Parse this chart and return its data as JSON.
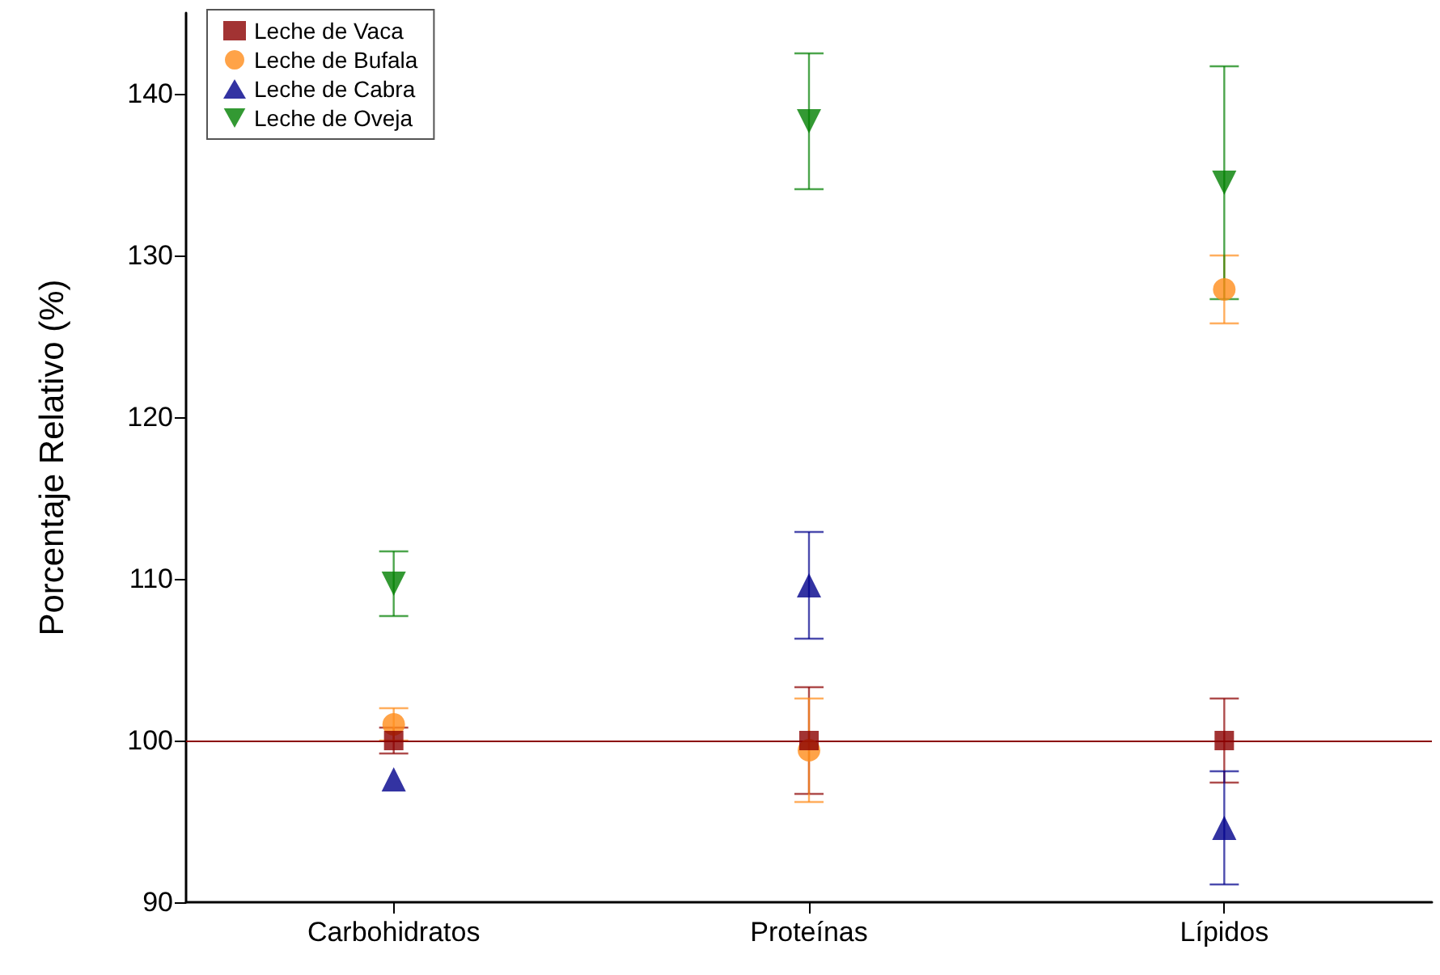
{
  "chart_data": {
    "type": "scatter",
    "ylabel": "Porcentaje Relativo (%)",
    "categories": [
      "Carbohidratos",
      "Proteínas",
      "Lípidos"
    ],
    "series": [
      {
        "name": "Leche de Vaca",
        "color": "#8b0000",
        "marker": "square",
        "values": [
          100,
          100,
          100
        ],
        "errors": [
          0.8,
          3.3,
          2.6
        ]
      },
      {
        "name": "Leche de Bufala",
        "color": "#ff8c1a",
        "marker": "circle",
        "values": [
          101,
          99.4,
          127.9
        ],
        "errors": [
          1,
          3.2,
          2.1
        ]
      },
      {
        "name": "Leche de Cabra",
        "color": "#00008b",
        "marker": "triangle",
        "values": [
          97.6,
          109.6,
          94.6
        ],
        "errors": [
          null,
          3.3,
          3.5
        ]
      },
      {
        "name": "Leche de Oveja",
        "color": "#007f00",
        "marker": "triangle-down",
        "values": [
          109.7,
          138.3,
          134.5
        ],
        "errors": [
          2,
          4.2,
          7.2
        ]
      }
    ],
    "ylim": [
      90,
      145
    ],
    "yticks": [
      90,
      100,
      110,
      120,
      130,
      140
    ],
    "grid": false,
    "legend": "top left",
    "ref_lines": [
      {
        "axis": "y",
        "value": 100,
        "color": "#8b0000"
      }
    ]
  }
}
